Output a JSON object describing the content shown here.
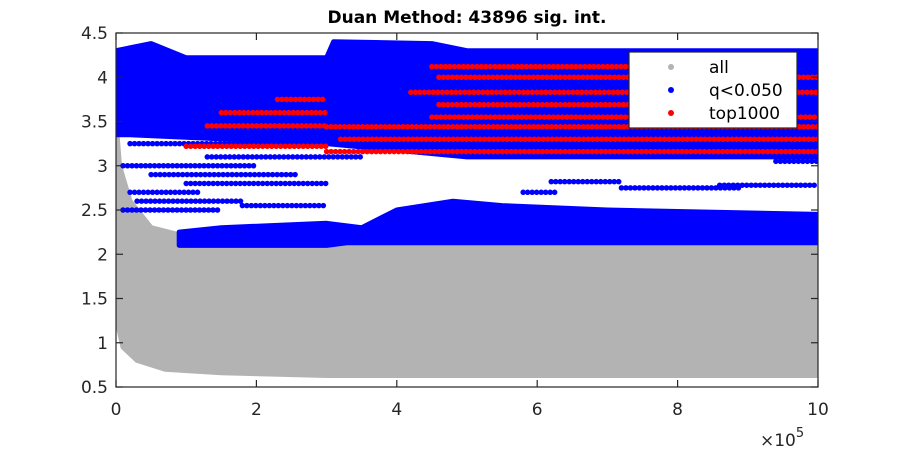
{
  "chart_data": {
    "type": "scatter",
    "title": "Duan Method: 43896 sig. int.",
    "xlabel": "",
    "ylabel": "",
    "x_exponent_label": "×10",
    "x_exponent_power": "5",
    "xlim": [
      0,
      10
    ],
    "ylim": [
      0.5,
      4.5
    ],
    "xticks": [
      0,
      2,
      4,
      6,
      8,
      10
    ],
    "xtick_labels": [
      "0",
      "2",
      "4",
      "6",
      "8",
      "10"
    ],
    "yticks": [
      0.5,
      1,
      1.5,
      2,
      2.5,
      3,
      3.5,
      4,
      4.5
    ],
    "ytick_labels": [
      "0.5",
      "1",
      "1.5",
      "2",
      "2.5",
      "3",
      "3.5",
      "4",
      "4.5"
    ],
    "legend": {
      "placement": "top-right",
      "entries": [
        {
          "label": "all",
          "color": "#b3b3b3"
        },
        {
          "label": "q<0.050",
          "color": "#0000ff"
        },
        {
          "label": "top1000",
          "color": "#ff0000"
        }
      ]
    },
    "series": [
      {
        "name": "all",
        "color": "#b3b3b3",
        "regions": [
          [
            [
              0,
              1.3
            ],
            [
              0.1,
              0.95
            ],
            [
              0.3,
              0.8
            ],
            [
              0.7,
              0.7
            ],
            [
              1.5,
              0.66
            ],
            [
              3,
              0.63
            ],
            [
              10,
              0.63
            ],
            [
              10,
              2.1
            ],
            [
              3.3,
              2.08
            ],
            [
              3.1,
              2.2
            ],
            [
              2.8,
              2.25
            ],
            [
              1,
              2.2
            ],
            [
              0.5,
              2.3
            ],
            [
              0.2,
              2.6
            ],
            [
              0.05,
              3.0
            ],
            [
              0,
              3.5
            ]
          ]
        ],
        "segments": []
      },
      {
        "name": "q<0.050",
        "color": "#0000ff",
        "regions": [
          [
            [
              0,
              3.35
            ],
            [
              0,
              4.3
            ],
            [
              0.5,
              4.38
            ],
            [
              1,
              4.22
            ],
            [
              3,
              4.22
            ],
            [
              3.1,
              4.4
            ],
            [
              4.5,
              4.38
            ],
            [
              5,
              4.3
            ],
            [
              10,
              4.3
            ],
            [
              10,
              3.1
            ],
            [
              5,
              3.1
            ],
            [
              3,
              3.25
            ],
            [
              0.2,
              3.35
            ]
          ],
          [
            [
              0.9,
              2.1
            ],
            [
              3,
              2.1
            ],
            [
              3.3,
              2.13
            ],
            [
              10,
              2.13
            ],
            [
              10,
              2.45
            ],
            [
              7,
              2.5
            ],
            [
              5.5,
              2.55
            ],
            [
              4.8,
              2.6
            ],
            [
              4,
              2.5
            ],
            [
              3.5,
              2.3
            ],
            [
              3,
              2.35
            ],
            [
              1.5,
              2.3
            ],
            [
              0.9,
              2.25
            ]
          ]
        ],
        "segments": [
          [
            0.1,
            1.5,
            2.5
          ],
          [
            0.2,
            1.2,
            2.7
          ],
          [
            1.0,
            3.0,
            2.8
          ],
          [
            0.1,
            2.0,
            3.0
          ],
          [
            0.2,
            3.0,
            3.25
          ],
          [
            1.3,
            3.5,
            3.1
          ],
          [
            0.5,
            2.6,
            2.9
          ],
          [
            0.3,
            1.8,
            2.6
          ],
          [
            1.8,
            3.0,
            2.55
          ],
          [
            6.2,
            7.2,
            2.82
          ],
          [
            7.2,
            8.9,
            2.75
          ],
          [
            8.6,
            10,
            2.78
          ],
          [
            5.8,
            6.3,
            2.7
          ],
          [
            9.4,
            10,
            3.05
          ]
        ]
      },
      {
        "name": "top1000",
        "color": "#ff0000",
        "regions": [],
        "segments": [
          [
            1.0,
            3.0,
            3.22
          ],
          [
            3.0,
            10,
            3.16
          ],
          [
            3.2,
            10,
            3.3
          ],
          [
            3.0,
            10,
            3.44
          ],
          [
            1.3,
            3.0,
            3.45
          ],
          [
            1.5,
            3.0,
            3.6
          ],
          [
            4.5,
            10,
            3.55
          ],
          [
            4.6,
            9.5,
            3.69
          ],
          [
            4.2,
            10,
            3.83
          ],
          [
            4.6,
            10,
            4.0
          ],
          [
            4.5,
            9.5,
            4.12
          ],
          [
            2.3,
            3.0,
            3.75
          ]
        ]
      }
    ]
  }
}
